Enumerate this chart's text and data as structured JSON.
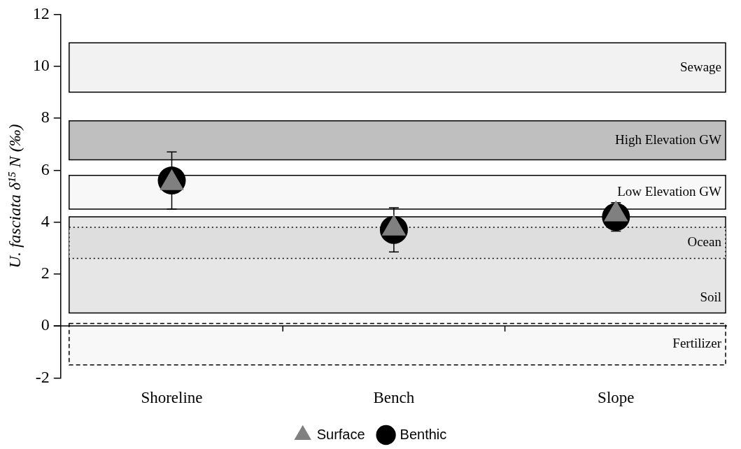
{
  "chart_data": {
    "type": "scatter",
    "ylabel": "U. fasciata δ¹⁵ N (‰)",
    "categories": [
      "Shoreline",
      "Bench",
      "Slope"
    ],
    "series": [
      {
        "name": "Surface",
        "color": "#808080",
        "marker": "triangle",
        "values": [
          5.5,
          3.75,
          4.3
        ]
      },
      {
        "name": "Benthic",
        "color": "#000000",
        "marker": "circle",
        "values": [
          5.6,
          3.7,
          4.2
        ],
        "errors": [
          1.1,
          0.85,
          0.55
        ]
      }
    ],
    "ylim": [
      -2,
      12
    ],
    "yticks": [
      -2,
      0,
      2,
      4,
      6,
      8,
      10,
      12
    ],
    "grid": false,
    "legend": "bottom",
    "ref_lines": [
      {
        "axis": "y",
        "value": 0,
        "color": "#000000"
      }
    ],
    "bands": [
      {
        "axis": "y",
        "from": 9.0,
        "to": 10.9,
        "label": "Sewage",
        "color": "#f2f2f2"
      },
      {
        "axis": "y",
        "from": 6.4,
        "to": 7.9,
        "label": "High Elevation GW",
        "color": "#bfbfbf"
      },
      {
        "axis": "y",
        "from": 4.5,
        "to": 5.8,
        "label": "Low Elevation GW",
        "color": "#f8f8f8"
      },
      {
        "axis": "y",
        "from": 0.5,
        "to": 4.2,
        "label": "Soil",
        "color": "#e6e6e6"
      },
      {
        "axis": "y",
        "from": 2.6,
        "to": 3.8,
        "label": "Ocean",
        "color": "#dedede"
      },
      {
        "axis": "y",
        "from": -1.5,
        "to": 0.1,
        "label": "Fertilizer",
        "color": "#f8f8f8"
      }
    ]
  }
}
